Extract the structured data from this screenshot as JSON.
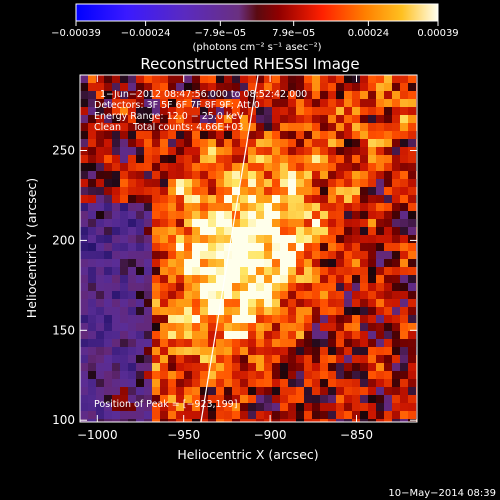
{
  "chart_data": {
    "type": "heatmap",
    "title": "Reconstructed RHESSI Image",
    "xlabel": "Heliocentric X (arcsec)",
    "ylabel": "Heliocentric Y (arcsec)",
    "xlim": [
      -1010,
      -815
    ],
    "ylim": [
      99,
      292
    ],
    "xticks": [
      -1000,
      -950,
      -900,
      -850
    ],
    "xtick_labels": [
      "−1000",
      "−950",
      "−900",
      "−850"
    ],
    "yticks": [
      100,
      150,
      200,
      250
    ],
    "ytick_labels": [
      "100",
      "150",
      "200",
      "250"
    ],
    "colorbar": {
      "range": [
        -0.00039,
        0.00039
      ],
      "ticks": [
        -0.00039,
        -0.00024,
        -7.9e-05,
        7.9e-05,
        0.00024,
        0.00039
      ],
      "tick_labels": [
        "−0.00039",
        "−0.00024",
        "−7.9e−05",
        "7.9e−05",
        "0.00024",
        "0.00039"
      ],
      "unit_label": "(photons cm⁻² s⁻¹ asec⁻²)"
    },
    "annotations": [
      "1−Jun−2012 08:47:56.000 to 08:52:42.000",
      "Detectors: 3F 5F 6F 7F 8F 9F; Att 0",
      "Energy Range: 12.0 − 25.0 keV",
      "Clean    Total counts: 4.66E+03",
      "Position of Peak = [−923,199]"
    ],
    "peak": [
      -923,
      199
    ],
    "limb_line": [
      [
        -940,
        99
      ],
      [
        -907,
        292
      ]
    ],
    "footer": "10−May−2014 08:39"
  }
}
